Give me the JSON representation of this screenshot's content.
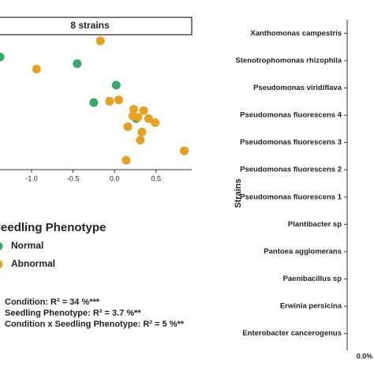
{
  "chart_data": [
    {
      "type": "scatter",
      "facet": "8 strains",
      "xlim": [
        -1.38,
        0.93
      ],
      "ylim": [
        0,
        10
      ],
      "xticks": [
        {
          "value": -1,
          "label": "-1.0"
        },
        {
          "value": -0.5,
          "label": "-0.5"
        },
        {
          "value": 0,
          "label": "0.0"
        },
        {
          "value": 0.5,
          "label": "0.5"
        }
      ],
      "legend_title": "Seedling Phenotype",
      "series": [
        {
          "name": "Normal",
          "color": "#3aa866",
          "x": [
            -1.38,
            -0.45,
            0.02,
            -0.25,
            0.26
          ],
          "values": [
            8.4,
            7.9,
            6.3,
            5.0,
            3.8
          ]
        },
        {
          "name": "Abnormal",
          "color": "#e8a020",
          "x": [
            -0.17,
            -0.94,
            -0.06,
            0.05,
            0.23,
            0.35,
            0.16,
            0.28,
            0.41,
            0.49,
            0.33,
            0.31,
            0.84,
            0.14,
            0.22
          ],
          "values": [
            9.6,
            7.5,
            5.1,
            5.2,
            4.5,
            4.4,
            3.2,
            3.9,
            3.8,
            3.5,
            2.8,
            2.2,
            1.4,
            0.7,
            4.0
          ]
        }
      ],
      "annotations": [
        "Condition: R² = 34 %***",
        "Seedling Phenotype: R² = 3.7 %**",
        "Condition x Seedling Phenotype: R² = 5 %**"
      ]
    },
    {
      "type": "bar",
      "ylabel": "Strains",
      "categories": [
        "Xanthomonas campestris",
        "Stenotrophomonas rhizophila",
        "Pseudomonas viridiflava",
        "Pseudomonas fluorescens 4",
        "Pseudomonas fluorescens 3",
        "Pseudomonas fluorescens 2",
        "Pseudomonas fluorescens 1",
        "Plantibacter sp",
        "Pantoea agglomerans",
        "Paenibacillus sp",
        "Erwinia persicina",
        "Enterobacter cancerogenus"
      ],
      "xticks": [
        {
          "value": 0,
          "label": "0.0%"
        }
      ]
    }
  ]
}
